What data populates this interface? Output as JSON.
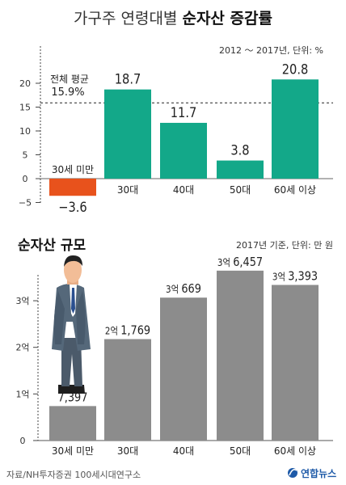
{
  "header": {
    "title_light": "가구주 연령대별 ",
    "title_bold": "순자산 증감률"
  },
  "footer": {
    "source": "자료/NH투자증권 100세시대연구소",
    "logo_text": "연합뉴스"
  },
  "colors": {
    "teal": "#13a889",
    "orange": "#e8521c",
    "gray": "#8c8c8c",
    "text": "#222222",
    "muted": "#333333",
    "logo_blue": "#1e5aa8"
  },
  "chart_data": [
    {
      "type": "bar",
      "unit_note": "2012 ～ 2017년, 단위: %",
      "categories": [
        "30세 미만",
        "30대",
        "40대",
        "50대",
        "60세 이상"
      ],
      "values": [
        -3.6,
        18.7,
        11.7,
        3.8,
        20.8
      ],
      "value_labels": [
        "−3.6",
        "18.7",
        "11.7",
        "3.8",
        "20.8"
      ],
      "y_ticks": [
        20,
        15,
        10,
        5,
        0,
        -5
      ],
      "y_tick_labels": [
        "20",
        "15",
        "10",
        "5",
        "0",
        "−5"
      ],
      "ylim": [
        -5,
        20.8
      ],
      "reference_line": {
        "value": 15.9,
        "label_line1": "전체 평균",
        "label_line2": "15.9%"
      },
      "grid": false
    },
    {
      "type": "bar",
      "title": "순자산 규모",
      "unit_note": "2017년 기준, 단위: 만 원",
      "categories": [
        "30세 미만",
        "30대",
        "40대",
        "50대",
        "60세 이상"
      ],
      "category_labels": [
        "30세 미만",
        "30대",
        "40대",
        "50대",
        "60세 이상"
      ],
      "values": [
        7397,
        21769,
        30669,
        36457,
        33393
      ],
      "value_labels": [
        {
          "prefix": "",
          "main": "7,397"
        },
        {
          "prefix": "2억 ",
          "main": "1,769"
        },
        {
          "prefix": "3억 ",
          "main": "669"
        },
        {
          "prefix": "3억 ",
          "main": "6,457"
        },
        {
          "prefix": "3억 ",
          "main": "3,393"
        }
      ],
      "y_ticks": [
        0,
        10000,
        20000,
        30000
      ],
      "y_tick_labels": [
        "0",
        "1억",
        "2억",
        "3억"
      ],
      "ylim": [
        0,
        40000
      ],
      "grid": false
    }
  ]
}
